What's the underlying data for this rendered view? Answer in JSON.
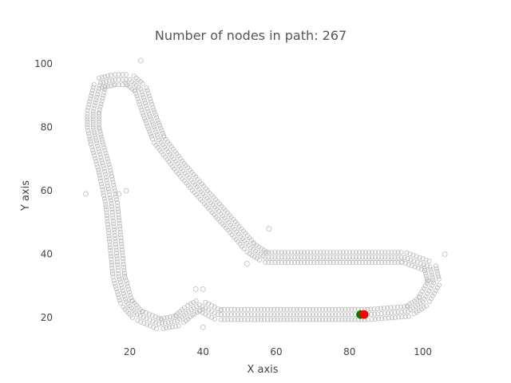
{
  "chart_data": {
    "type": "scatter",
    "title": "Number of nodes in path: 267",
    "xlabel": "X axis",
    "ylabel": "Y axis",
    "xlim": [
      2,
      111
    ],
    "ylim": [
      12,
      105
    ],
    "xticks": [
      20,
      40,
      60,
      80,
      100
    ],
    "yticks": [
      20,
      40,
      60,
      80,
      100
    ],
    "grid": false,
    "colors": {
      "track_marker": "#bbbbbb",
      "start": "#008000",
      "goal": "#ff0000",
      "text": "#444444"
    },
    "track_centerline": [
      [
        10,
        85
      ],
      [
        12,
        94
      ],
      [
        16,
        95
      ],
      [
        20,
        95
      ],
      [
        23,
        92
      ],
      [
        25,
        85
      ],
      [
        28,
        76
      ],
      [
        34,
        67
      ],
      [
        40,
        59
      ],
      [
        47,
        50
      ],
      [
        53,
        42
      ],
      [
        57,
        39
      ],
      [
        65,
        39
      ],
      [
        80,
        39
      ],
      [
        95,
        39
      ],
      [
        102,
        36
      ],
      [
        103,
        31
      ],
      [
        100,
        25
      ],
      [
        96,
        22
      ],
      [
        85,
        21
      ],
      [
        70,
        21
      ],
      [
        55,
        21
      ],
      [
        44,
        21
      ],
      [
        39,
        24
      ],
      [
        36,
        22
      ],
      [
        33,
        19
      ],
      [
        28,
        18
      ],
      [
        22,
        21
      ],
      [
        19,
        25
      ],
      [
        17,
        33
      ],
      [
        16,
        45
      ],
      [
        15,
        56
      ],
      [
        13,
        67
      ],
      [
        11,
        75
      ],
      [
        10,
        80
      ],
      [
        10,
        85
      ]
    ],
    "outliers": [
      [
        23,
        101
      ],
      [
        8,
        59
      ],
      [
        17,
        59
      ],
      [
        19,
        60
      ],
      [
        58,
        48
      ],
      [
        52,
        37
      ],
      [
        106,
        40
      ],
      [
        38,
        29
      ],
      [
        40,
        29
      ],
      [
        40,
        17
      ]
    ],
    "start": [
      83,
      21
    ],
    "goal": [
      84,
      21
    ]
  }
}
